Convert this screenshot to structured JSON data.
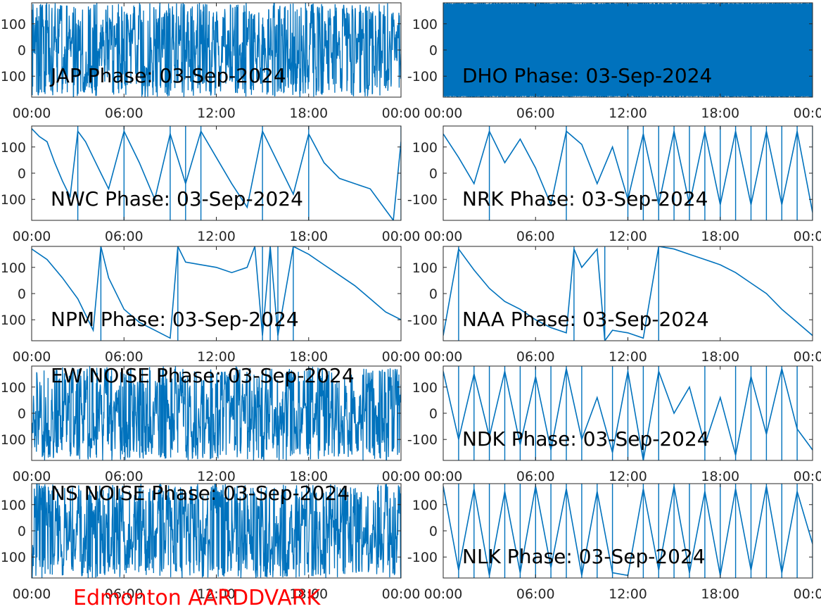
{
  "figure": {
    "station": "Edmonton AARDDVARK",
    "colors": {
      "trace": "#0072BD",
      "axis": "#262626",
      "station_label": "#ff0000",
      "background": "#ffffff"
    }
  },
  "chart_data": [
    {
      "type": "line",
      "title": "JAP Phase: 03-Sep-2024",
      "title_position": "bottom-left",
      "xlim": [
        "00:00",
        "24:00"
      ],
      "ylim": [
        -180,
        180
      ],
      "xticks": [
        "00:00",
        "06:00",
        "12:00",
        "18:00",
        "00:00"
      ],
      "yticks": [
        100,
        0,
        -100
      ],
      "pattern": "noise",
      "x": [
        "00:00",
        "01:00",
        "02:00",
        "03:00",
        "04:00",
        "05:00",
        "06:00",
        "07:00",
        "08:00",
        "09:00",
        "10:00",
        "11:00",
        "12:00",
        "13:00",
        "14:00",
        "15:00",
        "16:00",
        "17:00",
        "18:00",
        "19:00",
        "20:00",
        "21:00",
        "22:00",
        "23:00",
        "24:00"
      ],
      "y": [
        150,
        -120,
        90,
        -160,
        40,
        -60,
        170,
        -90,
        20,
        110,
        -140,
        60,
        -30,
        160,
        -170,
        80,
        -100,
        130,
        -20,
        100,
        -150,
        10,
        170,
        -80,
        120
      ]
    },
    {
      "type": "line",
      "title": "DHO Phase: 03-Sep-2024",
      "title_position": "bottom-left",
      "xlim": [
        "00:00",
        "24:00"
      ],
      "ylim": [
        -180,
        180
      ],
      "xticks": [
        "00:00",
        "06:00",
        "12:00",
        "18:00",
        "00:00"
      ],
      "yticks": [
        100,
        0,
        -100
      ],
      "pattern": "dense-wrap",
      "x": [
        "00:00",
        "01:00",
        "02:00",
        "03:00",
        "04:00",
        "05:00",
        "06:00",
        "07:00",
        "08:00",
        "09:00",
        "10:00",
        "11:00",
        "12:00",
        "13:00",
        "14:00",
        "15:00",
        "16:00",
        "17:00",
        "18:00",
        "19:00",
        "20:00",
        "21:00",
        "22:00",
        "23:00",
        "24:00"
      ],
      "y": [
        0,
        -20,
        10,
        -40,
        -30,
        -10,
        -50,
        -60,
        -20,
        -30,
        -40,
        -20,
        -40,
        -30,
        -50,
        -30,
        -40,
        -30,
        -20,
        -40,
        -30,
        -50,
        -20,
        -60,
        -40
      ]
    },
    {
      "type": "line",
      "title": "NWC Phase: 03-Sep-2024",
      "title_position": "bottom-left",
      "xlim": [
        "00:00",
        "24:00"
      ],
      "ylim": [
        -180,
        180
      ],
      "xticks": [
        "00:00",
        "06:00",
        "12:00",
        "18:00",
        "00:00"
      ],
      "yticks": [
        100,
        0,
        -100
      ],
      "pattern": "phase-wrap",
      "x": [
        "00:00",
        "00:30",
        "01:00",
        "01:30",
        "02:00",
        "02:30",
        "03:00",
        "03:30",
        "04:00",
        "04:30",
        "05:00",
        "06:00",
        "07:00",
        "08:00",
        "09:00",
        "10:00",
        "11:00",
        "12:00",
        "13:00",
        "14:00",
        "15:00",
        "16:00",
        "17:00",
        "18:00",
        "19:00",
        "20:00",
        "21:00",
        "22:00",
        "23:00",
        "23:30",
        "24:00"
      ],
      "y": [
        170,
        140,
        120,
        40,
        -30,
        -90,
        160,
        120,
        60,
        0,
        -60,
        160,
        40,
        -100,
        150,
        -40,
        160,
        60,
        -40,
        -130,
        160,
        40,
        -80,
        150,
        40,
        -20,
        -40,
        -60,
        -140,
        -180,
        120
      ]
    },
    {
      "type": "line",
      "title": "NRK Phase: 03-Sep-2024",
      "title_position": "bottom-left",
      "xlim": [
        "00:00",
        "24:00"
      ],
      "ylim": [
        -180,
        180
      ],
      "xticks": [
        "00:00",
        "06:00",
        "12:00",
        "18:00",
        "00:00"
      ],
      "yticks": [
        100,
        0,
        -100
      ],
      "pattern": "phase-wrap",
      "x": [
        "00:00",
        "01:00",
        "02:00",
        "03:00",
        "04:00",
        "05:00",
        "06:00",
        "07:00",
        "08:00",
        "09:00",
        "10:00",
        "11:00",
        "12:00",
        "13:00",
        "14:00",
        "15:00",
        "16:00",
        "17:00",
        "18:00",
        "19:00",
        "20:00",
        "21:00",
        "22:00",
        "23:00",
        "24:00"
      ],
      "y": [
        150,
        60,
        -40,
        160,
        40,
        130,
        20,
        -120,
        160,
        110,
        -40,
        100,
        -100,
        150,
        -120,
        160,
        -120,
        160,
        -120,
        160,
        -120,
        160,
        -120,
        160,
        -150
      ]
    },
    {
      "type": "line",
      "title": "NPM Phase: 03-Sep-2024",
      "title_position": "bottom-left",
      "xlim": [
        "00:00",
        "24:00"
      ],
      "ylim": [
        -180,
        180
      ],
      "xticks": [
        "00:00",
        "06:00",
        "12:00",
        "18:00",
        "00:00"
      ],
      "yticks": [
        100,
        0,
        -100
      ],
      "pattern": "phase-wrap",
      "x": [
        "00:00",
        "01:00",
        "02:00",
        "03:00",
        "04:00",
        "04:30",
        "05:00",
        "06:00",
        "07:00",
        "08:00",
        "09:00",
        "09:30",
        "10:00",
        "11:00",
        "12:00",
        "13:00",
        "14:00",
        "14:30",
        "15:00",
        "15:30",
        "16:00",
        "17:00",
        "18:00",
        "19:00",
        "20:00",
        "21:00",
        "22:00",
        "23:00",
        "24:00"
      ],
      "y": [
        170,
        130,
        60,
        -20,
        -140,
        180,
        60,
        -60,
        -110,
        -140,
        -170,
        180,
        120,
        110,
        100,
        80,
        100,
        180,
        -160,
        180,
        -160,
        180,
        150,
        110,
        70,
        30,
        -20,
        -70,
        -100
      ]
    },
    {
      "type": "line",
      "title": "NAA Phase: 03-Sep-2024",
      "title_position": "bottom-left",
      "xlim": [
        "00:00",
        "24:00"
      ],
      "ylim": [
        -180,
        180
      ],
      "xticks": [
        "00:00",
        "06:00",
        "12:00",
        "18:00",
        "00:00"
      ],
      "yticks": [
        100,
        0,
        -100
      ],
      "pattern": "phase-wrap",
      "x": [
        "00:00",
        "01:00",
        "02:00",
        "03:00",
        "04:00",
        "05:00",
        "06:00",
        "07:00",
        "08:00",
        "08:30",
        "09:00",
        "10:00",
        "10:30",
        "11:00",
        "12:00",
        "13:00",
        "14:00",
        "15:00",
        "16:00",
        "17:00",
        "18:00",
        "19:00",
        "20:00",
        "21:00",
        "22:00",
        "23:00",
        "24:00"
      ],
      "y": [
        -160,
        170,
        90,
        20,
        -30,
        -60,
        -100,
        -130,
        -150,
        170,
        100,
        170,
        -180,
        -140,
        -150,
        -170,
        180,
        170,
        150,
        130,
        110,
        80,
        40,
        0,
        -60,
        -110,
        -160
      ]
    },
    {
      "type": "line",
      "title": "EW NOISE Phase: 03-Sep-2024",
      "title_position": "top-left",
      "xlim": [
        "00:00",
        "24:00"
      ],
      "ylim": [
        -180,
        180
      ],
      "xticks": [
        "00:00",
        "06:00",
        "12:00",
        "18:00",
        "00:00"
      ],
      "yticks": [
        100,
        0,
        -100
      ],
      "pattern": "noise",
      "x": [
        "00:00",
        "01:00",
        "02:00",
        "03:00",
        "04:00",
        "05:00",
        "06:00",
        "07:00",
        "08:00",
        "09:00",
        "10:00",
        "11:00",
        "12:00",
        "13:00",
        "14:00",
        "15:00",
        "16:00",
        "17:00",
        "18:00",
        "19:00",
        "20:00",
        "21:00",
        "22:00",
        "23:00",
        "24:00"
      ],
      "y": [
        120,
        -160,
        60,
        -80,
        170,
        -30,
        140,
        -120,
        20,
        90,
        -170,
        50,
        -60,
        150,
        -140,
        100,
        -20,
        160,
        -90,
        40,
        -150,
        120,
        -40,
        170,
        -100
      ]
    },
    {
      "type": "line",
      "title": "NDK Phase: 03-Sep-2024",
      "title_position": "bottom-left",
      "xlim": [
        "00:00",
        "24:00"
      ],
      "ylim": [
        -180,
        180
      ],
      "xticks": [
        "00:00",
        "06:00",
        "12:00",
        "18:00",
        "00:00"
      ],
      "yticks": [
        100,
        0,
        -100
      ],
      "pattern": "phase-wrap",
      "x": [
        "00:00",
        "01:00",
        "02:00",
        "03:00",
        "04:00",
        "05:00",
        "06:00",
        "07:00",
        "08:00",
        "09:00",
        "10:00",
        "11:00",
        "12:00",
        "13:00",
        "14:00",
        "15:00",
        "16:00",
        "17:00",
        "18:00",
        "19:00",
        "20:00",
        "21:00",
        "22:00",
        "23:00",
        "24:00"
      ],
      "y": [
        160,
        -100,
        150,
        -90,
        160,
        -120,
        140,
        -140,
        170,
        -100,
        60,
        -150,
        160,
        -180,
        160,
        0,
        100,
        -120,
        60,
        -160,
        140,
        -80,
        170,
        -60,
        -140
      ]
    },
    {
      "type": "line",
      "title": "NS NOISE Phase: 03-Sep-2024",
      "title_position": "top-left",
      "xlim": [
        "00:00",
        "24:00"
      ],
      "ylim": [
        -180,
        180
      ],
      "xticks": [
        "00:00",
        "06:00",
        "12:00",
        "18:00",
        "00:00"
      ],
      "yticks": [
        100,
        0,
        -100
      ],
      "pattern": "noise",
      "x": [
        "00:00",
        "01:00",
        "02:00",
        "03:00",
        "04:00",
        "05:00",
        "06:00",
        "07:00",
        "08:00",
        "09:00",
        "10:00",
        "11:00",
        "12:00",
        "13:00",
        "14:00",
        "15:00",
        "16:00",
        "17:00",
        "18:00",
        "19:00",
        "20:00",
        "21:00",
        "22:00",
        "23:00",
        "24:00"
      ],
      "y": [
        -140,
        160,
        -60,
        110,
        -170,
        40,
        -100,
        150,
        -20,
        130,
        -160,
        70,
        -120,
        100,
        -40,
        170,
        -150,
        30,
        -90,
        140,
        -60,
        110,
        -170,
        60,
        120
      ]
    },
    {
      "type": "line",
      "title": "NLK Phase: 03-Sep-2024",
      "title_position": "bottom-left",
      "xlim": [
        "00:00",
        "24:00"
      ],
      "ylim": [
        -180,
        180
      ],
      "xticks": [
        "00:00",
        "06:00",
        "12:00",
        "18:00",
        "00:00"
      ],
      "yticks": [
        100,
        0,
        -100
      ],
      "pattern": "phase-wrap",
      "x": [
        "00:00",
        "01:00",
        "02:00",
        "03:00",
        "04:00",
        "05:00",
        "06:00",
        "07:00",
        "08:00",
        "09:00",
        "10:00",
        "11:00",
        "12:00",
        "13:00",
        "14:00",
        "15:00",
        "16:00",
        "17:00",
        "18:00",
        "19:00",
        "20:00",
        "21:00",
        "22:00",
        "23:00",
        "24:00"
      ],
      "y": [
        170,
        -150,
        160,
        -170,
        150,
        -160,
        170,
        -140,
        160,
        -170,
        150,
        -160,
        -170,
        160,
        -150,
        170,
        -160,
        150,
        -170,
        160,
        -150,
        170,
        -160,
        150,
        -50
      ]
    }
  ]
}
